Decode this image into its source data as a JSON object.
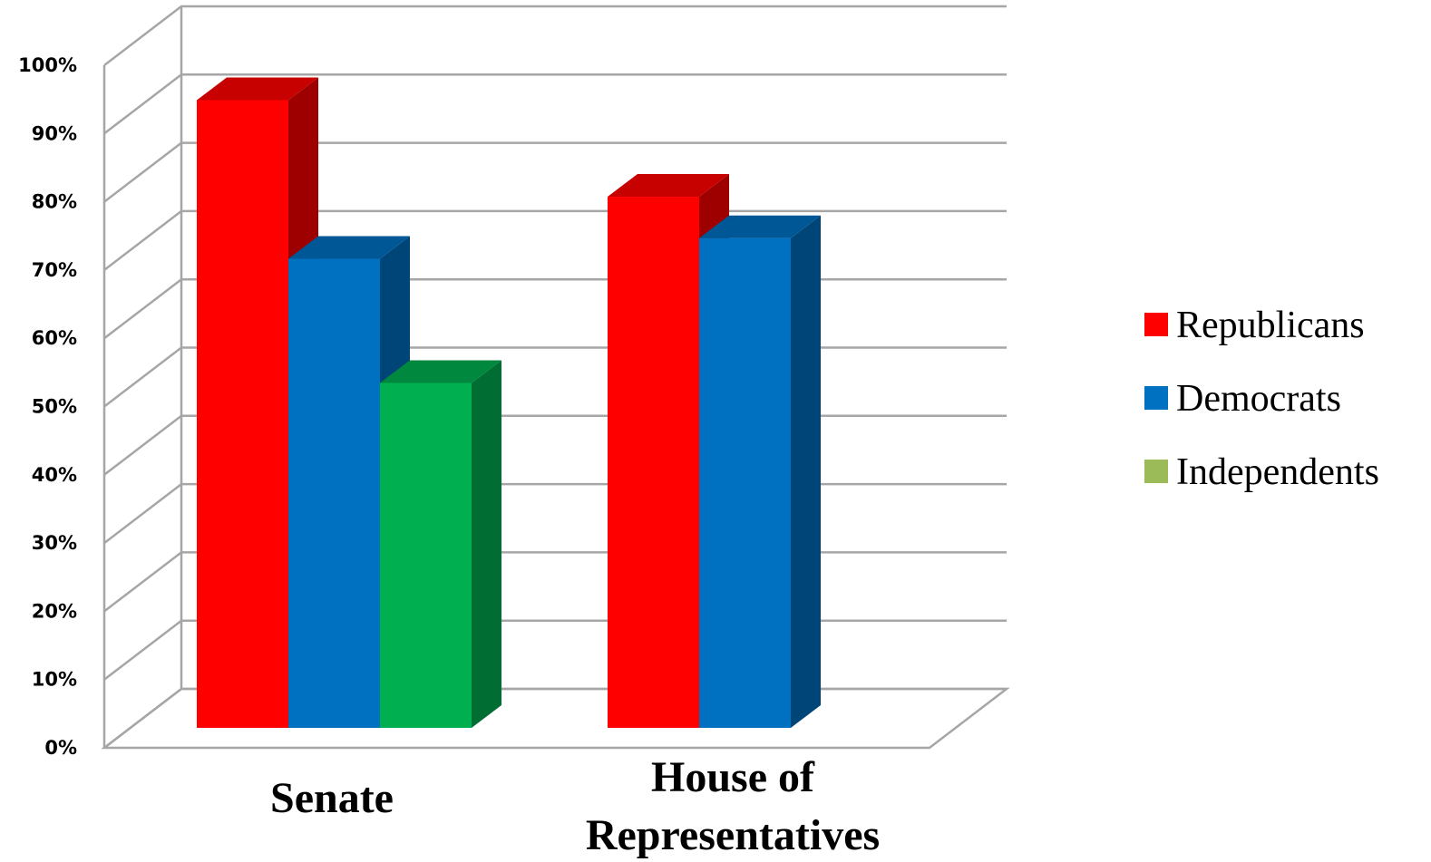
{
  "chart_data": {
    "type": "bar",
    "title": "",
    "xlabel": "",
    "ylabel": "",
    "ylim": [
      0,
      100
    ],
    "grid": true,
    "style": "3d-clustered-column",
    "legend_position": "right",
    "y_tick_labels": [
      "0%",
      "10%",
      "20%",
      "30%",
      "40%",
      "50%",
      "60%",
      "70%",
      "80%",
      "90%",
      "100%"
    ],
    "categories": [
      "Senate",
      "House of Representatives"
    ],
    "category_lines": [
      [
        "Senate"
      ],
      [
        "House of",
        "Representatives"
      ]
    ],
    "series": [
      {
        "name": "Republicans",
        "color": "#ff0000",
        "values": [
          91,
          77
        ]
      },
      {
        "name": "Democrats",
        "color": "#0070c0",
        "values": [
          68,
          71
        ]
      },
      {
        "name": "Independents",
        "color": "#00b050",
        "legend_color": "#9bbb59",
        "values": [
          50,
          null
        ]
      }
    ]
  }
}
